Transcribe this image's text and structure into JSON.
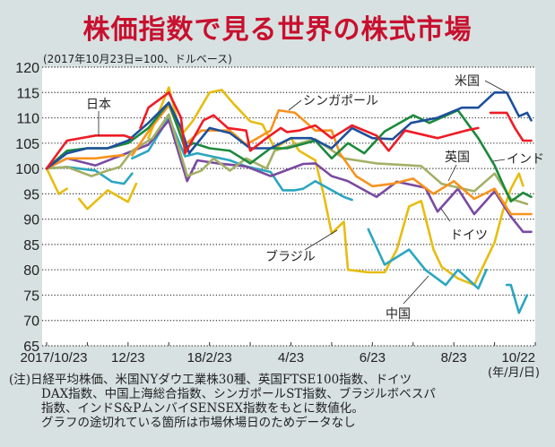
{
  "title": "株価指数で見る世界の株式市場",
  "subtitle": "(2017年10月23日=100、ドルベース)",
  "unit_label": "(年/月/日)",
  "note": {
    "lines": [
      "(注)日経平均株価、米国NYダウ工業株30種、英国FTSE100指数、ドイツ",
      "DAX指数、中国上海総合指数、シンガポールST指数、ブラジルボベスパ",
      "指数、インドS&PムンバイSENSEX指数をもとに数値化。",
      "グラフの途切れている箇所は市場休場日のためデータなし"
    ]
  },
  "chart_data": {
    "type": "line",
    "title": "株価指数で見る世界の株式市場",
    "ylabel": "2017年10月23日=100、ドルベース",
    "xlabel": "",
    "ylim": [
      65,
      120
    ],
    "xlim_months": [
      0,
      12
    ],
    "yticks": [
      65,
      70,
      75,
      80,
      85,
      90,
      95,
      100,
      105,
      110,
      115,
      120
    ],
    "xticks": [
      {
        "m": 0,
        "label": "2017/10/23"
      },
      {
        "m": 2,
        "label": "12/23"
      },
      {
        "m": 4,
        "label": "18/2/23"
      },
      {
        "m": 6,
        "label": "4/23"
      },
      {
        "m": 8,
        "label": "6/23"
      },
      {
        "m": 10,
        "label": "8/23"
      },
      {
        "m": 12,
        "label": "10/22"
      }
    ],
    "grid": true,
    "series": [
      {
        "name": "ブラジル",
        "key": "brazil",
        "color": "#e6bd12",
        "points": [
          [
            0,
            100
          ],
          [
            0.3,
            95
          ],
          [
            0.5,
            96
          ],
          null,
          [
            0.8,
            94
          ],
          [
            1,
            92
          ],
          [
            1.5,
            95.7
          ],
          [
            2,
            93.4
          ],
          [
            2.2,
            97
          ],
          null,
          [
            2.5,
            106
          ],
          [
            3,
            116
          ],
          [
            3.3,
            106.5
          ],
          [
            3.6,
            109.5
          ],
          [
            4,
            115
          ],
          [
            4.3,
            115.5
          ],
          [
            4.6,
            112.7
          ],
          [
            5,
            109.3
          ],
          [
            5.3,
            108.7
          ],
          [
            5.6,
            104
          ],
          [
            6,
            106
          ],
          [
            6.2,
            103.5
          ],
          [
            6.6,
            101.6
          ],
          [
            6.8,
            95
          ],
          [
            7,
            87.2
          ],
          [
            7.3,
            89.5
          ],
          [
            7.4,
            80
          ],
          [
            7.9,
            79.5
          ],
          [
            8.3,
            79.5
          ],
          [
            8.6,
            84
          ],
          [
            8.9,
            92.5
          ],
          [
            9.2,
            93.6
          ],
          [
            9.5,
            84
          ],
          [
            9.7,
            80.6
          ],
          [
            10.1,
            78.3
          ],
          [
            10.5,
            77
          ],
          [
            11,
            85.4
          ],
          [
            11.2,
            91.5
          ],
          [
            11.4,
            96
          ],
          [
            11.6,
            99
          ],
          [
            11.7,
            96.6
          ]
        ]
      },
      {
        "name": "中国",
        "key": "china",
        "color": "#2ba6c0",
        "points": [
          [
            0,
            100
          ],
          [
            0.5,
            100.3
          ],
          [
            1.2,
            99.6
          ],
          [
            1.6,
            97.4
          ],
          [
            1.9,
            97
          ],
          [
            2.1,
            99
          ],
          null,
          [
            2.1,
            102
          ],
          [
            2.5,
            103.5
          ],
          [
            3,
            110
          ],
          [
            3.4,
            102.4
          ],
          [
            3.7,
            103
          ],
          [
            4.5,
            101.6
          ],
          [
            4.9,
            100.4
          ],
          [
            5.5,
            99.3
          ],
          [
            5.8,
            95.7
          ],
          [
            6.1,
            95.7
          ],
          [
            6.3,
            96
          ],
          [
            6.6,
            97.5
          ],
          [
            7.3,
            94.4
          ],
          [
            7.5,
            93.8
          ],
          null,
          [
            7.9,
            88
          ],
          [
            8.3,
            81
          ],
          [
            8.9,
            84
          ],
          [
            9.3,
            80
          ],
          [
            9.8,
            77
          ],
          [
            10.1,
            80
          ],
          [
            10.6,
            76.3
          ],
          [
            10.8,
            80
          ],
          null,
          [
            11.3,
            77
          ],
          [
            11.4,
            77
          ],
          [
            11.6,
            71.5
          ],
          [
            11.8,
            75
          ]
        ]
      },
      {
        "name": "ドイツ",
        "key": "germany",
        "color": "#7a4aa0",
        "points": [
          [
            0,
            100
          ],
          [
            0.5,
            102
          ],
          [
            1.2,
            100.6
          ],
          [
            1.8,
            102.5
          ],
          [
            2.5,
            104.7
          ],
          [
            3,
            109.5
          ],
          [
            3.45,
            97.5
          ],
          [
            3.7,
            101.6
          ],
          [
            4.2,
            101
          ],
          [
            4.9,
            100.4
          ],
          [
            5.5,
            98.5
          ],
          [
            6,
            100
          ],
          [
            6.3,
            100.9
          ],
          [
            6.6,
            101
          ],
          [
            7,
            98.5
          ],
          [
            7.4,
            97.5
          ],
          [
            8.1,
            94.4
          ],
          [
            8.6,
            97.4
          ],
          [
            9.3,
            96.2
          ],
          [
            9.6,
            91.5
          ],
          [
            10.1,
            96
          ],
          [
            10.5,
            91
          ],
          [
            11,
            95.5
          ],
          [
            11.4,
            90.5
          ],
          [
            11.7,
            87.5
          ],
          [
            11.9,
            87.5
          ]
        ]
      },
      {
        "name": "英国",
        "key": "uk",
        "color": "#a3b066",
        "points": [
          [
            0,
            100
          ],
          [
            0.5,
            100.3
          ],
          [
            1.1,
            98.5
          ],
          [
            1.5,
            99.6
          ],
          [
            1.8,
            100.3
          ],
          [
            2.1,
            103.5
          ],
          [
            2.6,
            106
          ],
          [
            3,
            110.7
          ],
          [
            3.4,
            100
          ],
          [
            3.45,
            98.5
          ],
          [
            3.8,
            99.6
          ],
          [
            4.1,
            102
          ],
          [
            4.5,
            99.6
          ],
          [
            4.9,
            102
          ],
          [
            5.4,
            100
          ],
          [
            5.6,
            103.5
          ],
          [
            6.1,
            104.7
          ],
          [
            6.6,
            105.8
          ],
          [
            7.3,
            102
          ],
          [
            8.1,
            101
          ],
          [
            9.2,
            100.5
          ],
          [
            9.7,
            97
          ],
          [
            10.5,
            95.5
          ],
          [
            11,
            99
          ],
          [
            11.4,
            94
          ],
          [
            11.8,
            93
          ]
        ]
      },
      {
        "name": "シンガポール",
        "key": "singapore",
        "color": "#f7931e",
        "points": [
          [
            0,
            100
          ],
          [
            0.5,
            102
          ],
          [
            1.2,
            102
          ],
          [
            1.8,
            102.6
          ],
          [
            1.9,
            102.6
          ],
          null,
          [
            2.1,
            102.6
          ],
          [
            2.5,
            107.3
          ],
          [
            3,
            112.5
          ],
          [
            3.4,
            104.7
          ],
          [
            3.8,
            107.5
          ],
          [
            4.5,
            107.5
          ],
          [
            4.9,
            104.7
          ],
          [
            5.5,
            107.5
          ],
          [
            5.7,
            111.5
          ],
          [
            6.1,
            111
          ],
          [
            6.6,
            107.5
          ],
          [
            7,
            107.5
          ],
          [
            7.2,
            103
          ],
          [
            7.6,
            98.5
          ],
          [
            8,
            96.5
          ],
          [
            8.5,
            97
          ],
          [
            9,
            98
          ],
          [
            9.5,
            95
          ],
          [
            10,
            97.5
          ],
          [
            10.5,
            94
          ],
          [
            11,
            96
          ],
          [
            11.4,
            91
          ],
          [
            11.9,
            91
          ]
        ]
      },
      {
        "name": "インド",
        "key": "india",
        "color": "#1b8a3c",
        "points": [
          [
            0,
            100
          ],
          [
            0.5,
            103.5
          ],
          [
            1,
            104
          ],
          [
            1.5,
            104
          ],
          [
            2,
            105
          ],
          [
            2.5,
            108
          ],
          [
            3,
            113
          ],
          [
            3.4,
            104
          ],
          [
            3.6,
            105
          ],
          [
            4,
            104
          ],
          [
            4.5,
            103.5
          ],
          [
            5,
            101
          ],
          [
            5.5,
            104
          ],
          [
            5.9,
            104
          ],
          [
            6.6,
            105.5
          ],
          [
            7,
            102
          ],
          [
            7.4,
            105
          ],
          [
            7.8,
            103
          ],
          [
            8.3,
            107.3
          ],
          [
            9,
            110.5
          ],
          [
            9.4,
            109
          ],
          [
            10.1,
            111.5
          ],
          [
            10.6,
            106
          ],
          [
            11,
            100.6
          ],
          [
            11.2,
            97
          ],
          [
            11.4,
            93.5
          ],
          [
            11.7,
            95.2
          ],
          [
            11.9,
            94.4
          ]
        ]
      },
      {
        "name": "米国",
        "key": "us",
        "color": "#1d4f9c",
        "points": [
          [
            0,
            100
          ],
          [
            0.5,
            103
          ],
          [
            1,
            104
          ],
          [
            1.5,
            104
          ],
          [
            2,
            105.5
          ],
          [
            2.5,
            109
          ],
          [
            3,
            113
          ],
          [
            3.3,
            108
          ],
          [
            3.5,
            103
          ],
          [
            4,
            108
          ],
          [
            4.5,
            107
          ],
          [
            5,
            104
          ],
          [
            5.5,
            104
          ],
          [
            6,
            106
          ],
          [
            6.5,
            106
          ],
          [
            7,
            104
          ],
          [
            7.5,
            108
          ],
          [
            8,
            106
          ],
          [
            8.5,
            105.8
          ],
          [
            8.95,
            109
          ],
          [
            9.6,
            110
          ],
          [
            10.2,
            112
          ],
          [
            10.6,
            112
          ],
          [
            11,
            115
          ],
          [
            11.3,
            115
          ],
          [
            11.6,
            110.3
          ],
          [
            11.8,
            111
          ],
          [
            11.9,
            109.5
          ]
        ]
      },
      {
        "name": "日本",
        "key": "japan",
        "color": "#ee1c25",
        "points": [
          [
            0,
            100
          ],
          [
            0.5,
            105.5
          ],
          [
            1.2,
            106.5
          ],
          [
            1.9,
            106.5
          ],
          [
            2.1,
            106
          ],
          null,
          [
            2.3,
            108
          ],
          [
            2.5,
            112
          ],
          [
            3,
            115
          ],
          [
            3.3,
            110
          ],
          [
            3.4,
            103
          ],
          [
            3.85,
            109.5
          ],
          [
            4.1,
            110.5
          ],
          [
            4.45,
            108
          ],
          [
            4.9,
            107.5
          ],
          [
            5,
            103.5
          ],
          [
            5.4,
            106
          ],
          [
            5.75,
            108
          ],
          [
            5.9,
            107.2
          ],
          [
            6.2,
            107.5
          ],
          [
            6.6,
            108.5
          ],
          [
            7,
            106
          ],
          [
            7.5,
            108.5
          ],
          [
            8.1,
            106.5
          ],
          [
            8.4,
            103.5
          ],
          [
            8.8,
            107.5
          ],
          [
            9.6,
            106
          ],
          [
            10.3,
            107.5
          ],
          [
            10.6,
            108
          ],
          null,
          [
            10.9,
            111
          ],
          [
            11.3,
            111
          ],
          [
            11.5,
            108
          ],
          [
            11.7,
            105.5
          ],
          [
            11.9,
            105.5
          ]
        ]
      }
    ],
    "annotations": [
      {
        "key": "japan",
        "text": "日本"
      },
      {
        "key": "singapore",
        "text": "シンガポール"
      },
      {
        "key": "us",
        "text": "米国"
      },
      {
        "key": "uk",
        "text": "英国"
      },
      {
        "key": "india",
        "text": "インド"
      },
      {
        "key": "germany",
        "text": "ドイツ"
      },
      {
        "key": "brazil",
        "text": "ブラジル"
      },
      {
        "key": "china",
        "text": "中国"
      }
    ]
  }
}
